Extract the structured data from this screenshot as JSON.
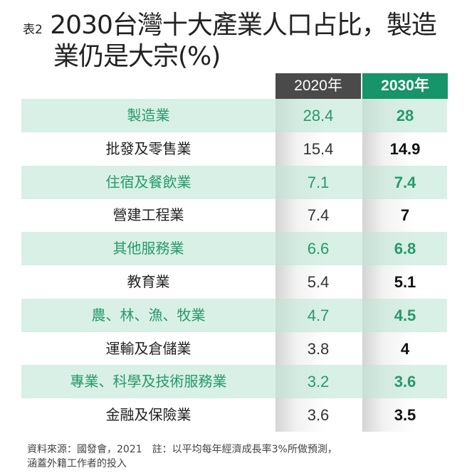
{
  "title": {
    "prefix": "表2",
    "line1": "2030台灣十大產業人口占比，製造",
    "line2": "業仍是大宗",
    "unit": "(%)"
  },
  "chart_data": {
    "type": "table",
    "columns": [
      "2020年",
      "2030年"
    ],
    "rows": [
      {
        "label": "製造業",
        "v2020": "28.4",
        "v2030": "28"
      },
      {
        "label": "批發及零售業",
        "v2020": "15.4",
        "v2030": "14.9"
      },
      {
        "label": "住宿及餐飲業",
        "v2020": "7.1",
        "v2030": "7.4"
      },
      {
        "label": "營建工程業",
        "v2020": "7.4",
        "v2030": "7"
      },
      {
        "label": "其他服務業",
        "v2020": "6.6",
        "v2030": "6.8"
      },
      {
        "label": "教育業",
        "v2020": "5.4",
        "v2030": "5.1"
      },
      {
        "label": "農、林、漁、牧業",
        "v2020": "4.7",
        "v2030": "4.5"
      },
      {
        "label": "運輸及倉儲業",
        "v2020": "3.8",
        "v2030": "4"
      },
      {
        "label": "專業、科學及技術服務業",
        "v2020": "3.2",
        "v2030": "3.6"
      },
      {
        "label": "金融及保險業",
        "v2020": "3.6",
        "v2030": "3.5"
      }
    ]
  },
  "colors": {
    "header_2020": "#4a4a4a",
    "header_2030": "#16946a",
    "accent_text": "#27996c",
    "stripe": "#d8efe5"
  },
  "footer": {
    "line1": "資料來源：國發會，2021　註：以平均每年經濟成長率3%所做預測，",
    "line2": "涵蓋外籍工作者的投入"
  }
}
